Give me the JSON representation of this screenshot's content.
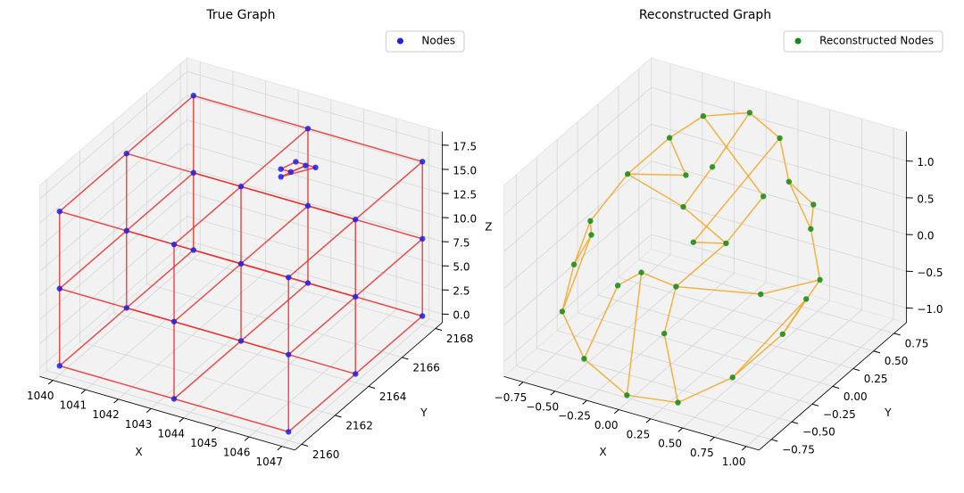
{
  "chart_data": [
    {
      "type": "scatter3d",
      "title": "True Graph",
      "xlabel": "X",
      "ylabel": "Y",
      "zlabel": "Z",
      "xlim": [
        1039.6,
        1047.4
      ],
      "ylim": [
        2159.6,
        2168.4
      ],
      "zlim": [
        -0.9,
        18.9
      ],
      "xticks": [
        1040,
        1041,
        1042,
        1043,
        1044,
        1045,
        1046,
        1047
      ],
      "yticks": [
        2160,
        2162,
        2164,
        2166,
        2168
      ],
      "zticks": [
        {
          "value": 0,
          "label": "0.0"
        },
        {
          "value": 2.5,
          "label": "2.5"
        },
        {
          "value": 5,
          "label": "5.0"
        },
        {
          "value": 7.5,
          "label": "7.5"
        },
        {
          "value": 10,
          "label": "10.0"
        },
        {
          "value": 12.5,
          "label": "12.5"
        },
        {
          "value": 15,
          "label": "15.0"
        },
        {
          "value": 17.5,
          "label": "17.5"
        }
      ],
      "grid": true,
      "legend": "upper right",
      "series": [
        {
          "name": "Nodes",
          "color": "#1f1fe6",
          "edge_color": "#e8302f",
          "x": [
            1040,
            1040,
            1040,
            1040,
            1040,
            1040,
            1040,
            1040,
            1040,
            1043.5,
            1043.5,
            1043.5,
            1043.5,
            1043.5,
            1043.5,
            1043.5,
            1043.5,
            1043.5,
            1047,
            1047,
            1047,
            1047,
            1047,
            1047,
            1047,
            1047,
            1047,
            1044,
            1044.3,
            1043.8,
            1044.5,
            1044.1,
            1043.9
          ],
          "y": [
            2160,
            2160,
            2160,
            2164,
            2164,
            2164,
            2168,
            2168,
            2168,
            2160,
            2160,
            2160,
            2164,
            2164,
            2164,
            2168,
            2168,
            2168,
            2160,
            2160,
            2160,
            2164,
            2164,
            2164,
            2168,
            2168,
            2168,
            2166,
            2166.3,
            2165.8,
            2166.5,
            2166.1,
            2165.6
          ],
          "z": [
            0,
            8,
            16,
            0,
            8,
            16,
            0,
            8,
            16,
            0,
            8,
            16,
            0,
            8,
            16,
            0,
            8,
            16,
            0,
            8,
            16,
            0,
            8,
            16,
            0,
            8,
            16,
            15,
            15.5,
            14.6,
            15.2,
            16,
            15.8
          ],
          "edges": [
            [
              0,
              9
            ],
            [
              1,
              10
            ],
            [
              2,
              11
            ],
            [
              3,
              12
            ],
            [
              4,
              13
            ],
            [
              5,
              14
            ],
            [
              6,
              15
            ],
            [
              7,
              16
            ],
            [
              8,
              17
            ],
            [
              9,
              18
            ],
            [
              10,
              19
            ],
            [
              11,
              20
            ],
            [
              12,
              21
            ],
            [
              13,
              22
            ],
            [
              14,
              23
            ],
            [
              15,
              24
            ],
            [
              16,
              25
            ],
            [
              17,
              26
            ],
            [
              0,
              3
            ],
            [
              1,
              4
            ],
            [
              2,
              5
            ],
            [
              3,
              6
            ],
            [
              4,
              7
            ],
            [
              5,
              8
            ],
            [
              9,
              12
            ],
            [
              10,
              13
            ],
            [
              11,
              14
            ],
            [
              12,
              15
            ],
            [
              13,
              16
            ],
            [
              14,
              17
            ],
            [
              18,
              21
            ],
            [
              19,
              22
            ],
            [
              20,
              23
            ],
            [
              21,
              24
            ],
            [
              22,
              25
            ],
            [
              23,
              26
            ],
            [
              0,
              1
            ],
            [
              1,
              2
            ],
            [
              3,
              4
            ],
            [
              4,
              5
            ],
            [
              6,
              7
            ],
            [
              7,
              8
            ],
            [
              9,
              10
            ],
            [
              10,
              11
            ],
            [
              12,
              13
            ],
            [
              13,
              14
            ],
            [
              15,
              16
            ],
            [
              16,
              17
            ],
            [
              18,
              19
            ],
            [
              19,
              20
            ],
            [
              21,
              22
            ],
            [
              22,
              23
            ],
            [
              24,
              25
            ],
            [
              25,
              26
            ],
            [
              27,
              28
            ],
            [
              28,
              29
            ],
            [
              29,
              30
            ],
            [
              30,
              31
            ],
            [
              31,
              32
            ],
            [
              32,
              27
            ]
          ]
        }
      ]
    },
    {
      "type": "scatter3d",
      "title": "Reconstructed Graph",
      "xlabel": "X",
      "ylabel": "Y",
      "xlim": [
        -0.9,
        1.1
      ],
      "ylim": [
        -0.9,
        0.9
      ],
      "zlim": [
        -1.2,
        1.4
      ],
      "xticks": [
        {
          "value": -0.75,
          "label": "−0.75"
        },
        {
          "value": -0.5,
          "label": "−0.50"
        },
        {
          "value": -0.25,
          "label": "−0.25"
        },
        {
          "value": 0,
          "label": "0.00"
        },
        {
          "value": 0.25,
          "label": "0.25"
        },
        {
          "value": 0.5,
          "label": "0.50"
        },
        {
          "value": 0.75,
          "label": "0.75"
        },
        {
          "value": 1,
          "label": "1.00"
        }
      ],
      "yticks": [
        {
          "value": -0.75,
          "label": "−0.75"
        },
        {
          "value": -0.5,
          "label": "−0.50"
        },
        {
          "value": -0.25,
          "label": "−0.25"
        },
        {
          "value": 0,
          "label": "0.00"
        },
        {
          "value": 0.25,
          "label": "0.25"
        },
        {
          "value": 0.5,
          "label": "0.50"
        },
        {
          "value": 0.75,
          "label": "0.75"
        }
      ],
      "zticks": [
        {
          "value": -1,
          "label": "−1.0"
        },
        {
          "value": -0.5,
          "label": "−0.5"
        },
        {
          "value": 0,
          "label": "0.0"
        },
        {
          "value": 0.5,
          "label": "0.5"
        },
        {
          "value": 1,
          "label": "1.0"
        }
      ],
      "grid": true,
      "legend": "upper right",
      "series": [
        {
          "name": "Reconstructed Nodes",
          "color": "#138a13",
          "edge_color": "#f5a623",
          "x": [
            -0.8,
            -0.7,
            -0.6,
            -0.5,
            -0.3,
            0,
            0.3,
            0.5,
            0.8,
            1,
            0.9,
            0.7,
            0.4,
            0,
            -0.4,
            -0.7,
            -0.8,
            -0.2,
            0.2,
            0,
            0.3,
            0.6,
            -0.4,
            0.1,
            -0.1,
            0.5,
            -0.5,
            0.2,
            0.7,
            -0.2
          ],
          "y": [
            0,
            0.3,
            -0.3,
            0.5,
            0.6,
            0.7,
            0.6,
            0.4,
            0.2,
            0,
            -0.3,
            -0.6,
            -0.8,
            -0.8,
            -0.7,
            -0.5,
            -0.2,
            0.2,
            0.1,
            -0.2,
            0.4,
            -0.1,
            0,
            -0.5,
            0.4,
            0.7,
            0.7,
            -0.3,
            0.3,
            -0.6
          ],
          "z": [
            0.1,
            0.5,
            0.3,
            0.9,
            1.2,
            1.3,
            1.2,
            0.9,
            0.6,
            0.2,
            -0.3,
            -0.7,
            -1,
            -1.1,
            -0.9,
            -0.6,
            -0.3,
            0.4,
            0.2,
            -0.2,
            0.6,
            -0.1,
            -0.4,
            -0.5,
            0.8,
            0.3,
            0.2,
            0.6,
            -0.5,
            0.1
          ],
          "edges": [
            [
              0,
              1
            ],
            [
              1,
              3
            ],
            [
              3,
              4
            ],
            [
              4,
              5
            ],
            [
              5,
              6
            ],
            [
              6,
              7
            ],
            [
              7,
              8
            ],
            [
              8,
              9
            ],
            [
              9,
              10
            ],
            [
              10,
              11
            ],
            [
              11,
              12
            ],
            [
              12,
              13
            ],
            [
              13,
              14
            ],
            [
              14,
              15
            ],
            [
              15,
              16
            ],
            [
              16,
              0
            ],
            [
              0,
              2
            ],
            [
              2,
              15
            ],
            [
              1,
              17
            ],
            [
              17,
              24
            ],
            [
              24,
              5
            ],
            [
              17,
              18
            ],
            [
              18,
              19
            ],
            [
              19,
              21
            ],
            [
              21,
              9
            ],
            [
              19,
              22
            ],
            [
              22,
              13
            ],
            [
              23,
              12
            ],
            [
              23,
              19
            ],
            [
              20,
              4
            ],
            [
              20,
              18
            ],
            [
              25,
              7
            ],
            [
              25,
              8
            ],
            [
              26,
              3
            ],
            [
              26,
              1
            ],
            [
              27,
              18
            ],
            [
              27,
              6
            ],
            [
              28,
              11
            ],
            [
              29,
              14
            ],
            [
              29,
              22
            ],
            [
              2,
              16
            ],
            [
              10,
              28
            ]
          ]
        }
      ]
    }
  ]
}
